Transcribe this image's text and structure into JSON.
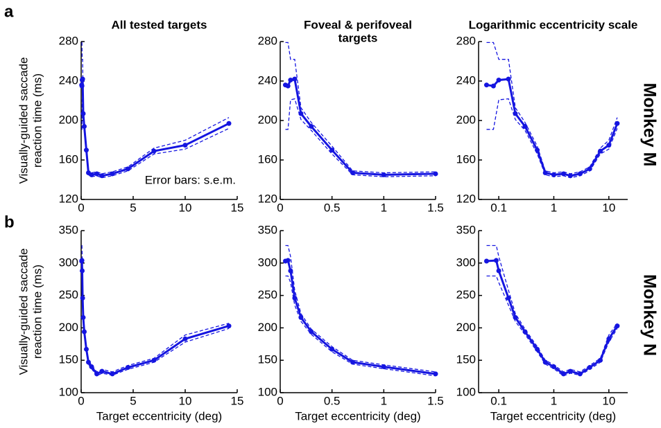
{
  "row_labels": [
    "a",
    "b"
  ],
  "monkey_labels": [
    "Monkey M",
    "Monkey N"
  ],
  "chart_data": [
    {
      "type": "line",
      "title": [
        "All tested targets"
      ],
      "ylabel": [
        "Visually-guided saccade",
        "reaction time (ms)"
      ],
      "annotation": "Error bars: s.e.m.",
      "x": [
        0.05,
        0.075,
        0.1,
        0.14,
        0.2,
        0.3,
        0.5,
        0.7,
        1,
        1.5,
        2,
        3,
        4.5,
        7,
        10,
        14.2
      ],
      "xlim": [
        0,
        15
      ],
      "xticks": [
        0,
        5,
        10,
        15
      ],
      "ylim": [
        120,
        280
      ],
      "yticks": [
        120,
        160,
        200,
        240,
        280
      ],
      "series": [
        {
          "color": "#1515e0",
          "linestyle": "solid",
          "markers": true,
          "values": [
            236,
            235,
            241,
            242,
            207,
            194,
            170,
            147,
            145,
            146,
            144,
            146,
            151,
            169,
            175,
            197
          ]
        },
        {
          "color": "#1515e0",
          "linestyle": "dashed",
          "markers": false,
          "values": [
            279,
            279,
            262,
            262,
            213,
            198,
            174,
            149,
            147,
            148,
            146,
            148,
            153,
            172,
            180,
            203
          ]
        },
        {
          "color": "#1515e0",
          "linestyle": "dashed",
          "markers": false,
          "values": [
            191,
            191,
            221,
            222,
            201,
            190,
            166,
            145,
            143,
            144,
            142,
            144,
            149,
            166,
            171,
            192
          ]
        }
      ]
    },
    {
      "type": "line",
      "title": [
        "Foveal & perifoveal",
        "targets"
      ],
      "x": [
        0.05,
        0.075,
        0.1,
        0.14,
        0.2,
        0.3,
        0.5,
        0.7,
        1,
        1.5
      ],
      "xlim": [
        0,
        1.5
      ],
      "xticks": [
        0,
        0.5,
        1,
        1.5
      ],
      "ylim": [
        120,
        280
      ],
      "yticks": [
        120,
        160,
        200,
        240,
        280
      ],
      "series": [
        {
          "color": "#1515e0",
          "linestyle": "solid",
          "markers": true,
          "values": [
            236,
            235,
            241,
            242,
            207,
            194,
            170,
            147,
            145,
            146
          ]
        },
        {
          "color": "#1515e0",
          "linestyle": "dashed",
          "markers": false,
          "values": [
            279,
            279,
            262,
            262,
            213,
            198,
            174,
            149,
            147,
            148
          ]
        },
        {
          "color": "#1515e0",
          "linestyle": "dashed",
          "markers": false,
          "values": [
            191,
            191,
            221,
            222,
            201,
            190,
            166,
            145,
            143,
            144
          ]
        }
      ]
    },
    {
      "type": "line",
      "title": [
        "Logarithmic eccentricity scale"
      ],
      "xscale": "log",
      "x": [
        0.06,
        0.08,
        0.1,
        0.15,
        0.2,
        0.3,
        0.5,
        0.7,
        1,
        1.5,
        2,
        3,
        4.5,
        7,
        10,
        14.2
      ],
      "xlim": [
        0.043,
        22
      ],
      "xticks": [
        0.1,
        1,
        10
      ],
      "ylim": [
        120,
        280
      ],
      "yticks": [
        120,
        160,
        200,
        240,
        280
      ],
      "series": [
        {
          "color": "#1515e0",
          "linestyle": "solid",
          "markers": true,
          "values": [
            236,
            235,
            241,
            242,
            207,
            194,
            170,
            147,
            145,
            146,
            144,
            146,
            151,
            169,
            175,
            197
          ]
        },
        {
          "color": "#1515e0",
          "linestyle": "dashed",
          "markers": false,
          "values": [
            279,
            279,
            262,
            262,
            213,
            198,
            174,
            149,
            147,
            148,
            146,
            148,
            153,
            172,
            180,
            203
          ]
        },
        {
          "color": "#1515e0",
          "linestyle": "dashed",
          "markers": false,
          "values": [
            191,
            191,
            221,
            222,
            201,
            190,
            166,
            145,
            143,
            144,
            142,
            144,
            149,
            166,
            171,
            192
          ]
        }
      ]
    },
    {
      "type": "line",
      "ylabel": [
        "Visually-guided saccade",
        "reaction time (ms)"
      ],
      "xlabel": "Target eccentricity (deg)",
      "x": [
        0.05,
        0.075,
        0.1,
        0.14,
        0.2,
        0.3,
        0.5,
        0.7,
        1,
        1.5,
        2,
        3,
        4.5,
        7,
        10,
        14.2
      ],
      "xlim": [
        0,
        15
      ],
      "xticks": [
        0,
        5,
        10,
        15
      ],
      "ylim": [
        100,
        350
      ],
      "yticks": [
        100,
        150,
        200,
        250,
        300,
        350
      ],
      "series": [
        {
          "color": "#1515e0",
          "linestyle": "solid",
          "markers": true,
          "values": [
            303,
            304,
            288,
            246,
            216,
            194,
            167,
            147,
            140,
            129,
            133,
            129,
            139,
            150,
            183,
            203
          ]
        },
        {
          "color": "#1515e0",
          "linestyle": "dashed",
          "markers": false,
          "values": [
            327,
            327,
            310,
            258,
            222,
            198,
            171,
            150,
            143,
            132,
            136,
            132,
            142,
            153,
            189,
            207
          ]
        },
        {
          "color": "#1515e0",
          "linestyle": "dashed",
          "markers": false,
          "values": [
            280,
            280,
            270,
            235,
            210,
            190,
            163,
            144,
            137,
            126,
            130,
            127,
            136,
            147,
            178,
            199
          ]
        }
      ]
    },
    {
      "type": "line",
      "xlabel": "Target eccentricity (deg)",
      "x": [
        0.05,
        0.075,
        0.1,
        0.14,
        0.2,
        0.3,
        0.5,
        0.7,
        1,
        1.5
      ],
      "xlim": [
        0,
        1.5
      ],
      "xticks": [
        0,
        0.5,
        1,
        1.5
      ],
      "ylim": [
        100,
        350
      ],
      "yticks": [
        100,
        150,
        200,
        250,
        300,
        350
      ],
      "series": [
        {
          "color": "#1515e0",
          "linestyle": "solid",
          "markers": true,
          "values": [
            303,
            304,
            288,
            246,
            216,
            194,
            167,
            147,
            140,
            129
          ]
        },
        {
          "color": "#1515e0",
          "linestyle": "dashed",
          "markers": false,
          "values": [
            327,
            327,
            310,
            258,
            222,
            198,
            171,
            150,
            143,
            132
          ]
        },
        {
          "color": "#1515e0",
          "linestyle": "dashed",
          "markers": false,
          "values": [
            280,
            280,
            270,
            235,
            210,
            190,
            163,
            144,
            137,
            126
          ]
        }
      ]
    },
    {
      "type": "line",
      "xlabel": "Target eccentricity (deg)",
      "xscale": "log",
      "x": [
        0.06,
        0.09,
        0.1,
        0.15,
        0.2,
        0.3,
        0.5,
        0.7,
        1,
        1.5,
        2,
        3,
        4.5,
        7,
        10,
        14.2
      ],
      "xlim": [
        0.043,
        22
      ],
      "xticks": [
        0.1,
        1,
        10
      ],
      "ylim": [
        100,
        350
      ],
      "yticks": [
        100,
        150,
        200,
        250,
        300,
        350
      ],
      "series": [
        {
          "color": "#1515e0",
          "linestyle": "solid",
          "markers": true,
          "values": [
            303,
            304,
            288,
            246,
            216,
            194,
            167,
            147,
            140,
            129,
            133,
            129,
            139,
            150,
            183,
            203
          ]
        },
        {
          "color": "#1515e0",
          "linestyle": "dashed",
          "markers": false,
          "values": [
            327,
            327,
            310,
            258,
            222,
            198,
            171,
            150,
            143,
            132,
            136,
            132,
            142,
            153,
            189,
            207
          ]
        },
        {
          "color": "#1515e0",
          "linestyle": "dashed",
          "markers": false,
          "values": [
            280,
            280,
            270,
            235,
            210,
            190,
            163,
            144,
            137,
            126,
            130,
            127,
            136,
            147,
            178,
            199
          ]
        }
      ]
    }
  ]
}
